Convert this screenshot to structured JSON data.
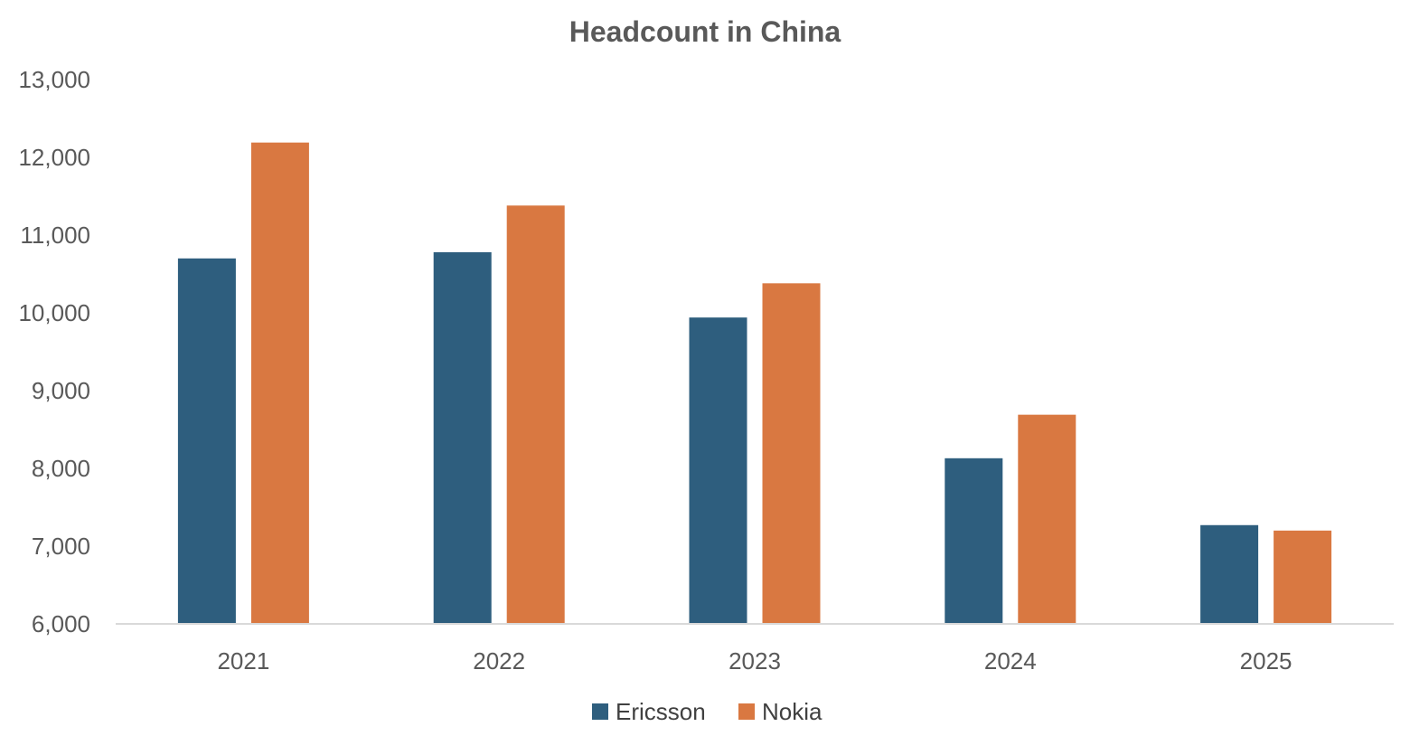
{
  "chart_data": {
    "type": "bar",
    "title": "Headcount in China",
    "xlabel": "",
    "ylabel": "",
    "categories": [
      "2021",
      "2022",
      "2023",
      "2024",
      "2025"
    ],
    "series": [
      {
        "name": "Ericsson",
        "color": "#2E5E7E",
        "values": [
          10700,
          10780,
          9940,
          8130,
          7270
        ]
      },
      {
        "name": "Nokia",
        "color": "#D97841",
        "values": [
          12190,
          11380,
          10380,
          8690,
          7200
        ]
      }
    ],
    "ylim": [
      6000,
      13000
    ],
    "yticks": [
      6000,
      7000,
      8000,
      9000,
      10000,
      11000,
      12000,
      13000
    ],
    "ytick_labels": [
      "6,000",
      "7,000",
      "8,000",
      "9,000",
      "10,000",
      "11,000",
      "12,000",
      "13,000"
    ],
    "grid": false,
    "legend_position": "bottom"
  }
}
